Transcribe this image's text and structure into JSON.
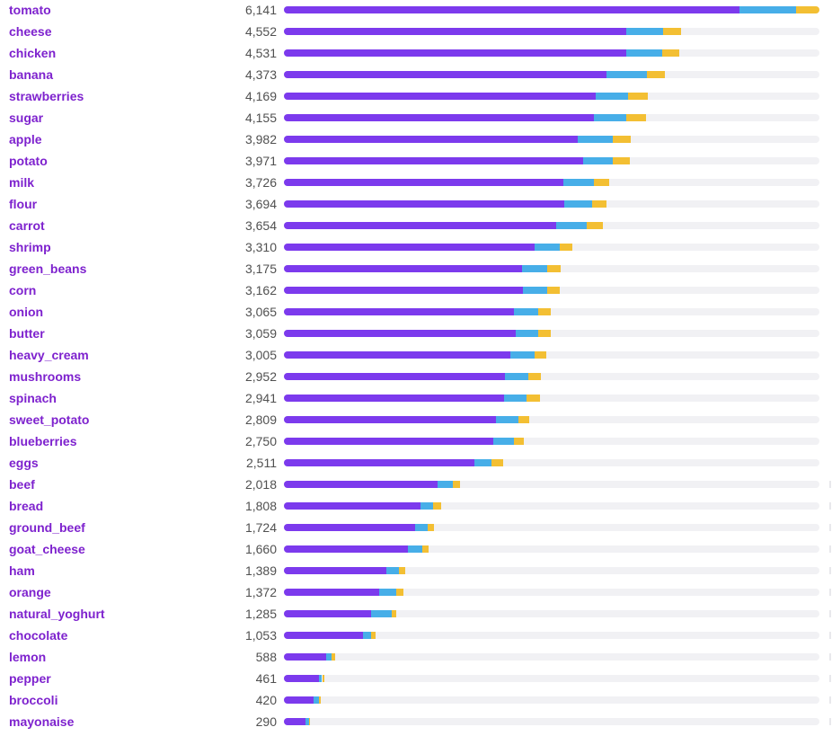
{
  "colors": {
    "label": "#7e22ce",
    "count": "#505050",
    "track": "#f1f1f4",
    "series": [
      "#7c3aed",
      "#47aee8",
      "#f3bf33"
    ]
  },
  "chart_data": {
    "type": "bar",
    "orientation": "horizontal",
    "stacked": true,
    "xlim": [
      0,
      6141
    ],
    "grid": false,
    "categories": [
      "tomato",
      "cheese",
      "chicken",
      "banana",
      "strawberries",
      "sugar",
      "apple",
      "potato",
      "milk",
      "flour",
      "carrot",
      "shrimp",
      "green_beans",
      "corn",
      "onion",
      "butter",
      "heavy_cream",
      "mushrooms",
      "spinach",
      "sweet_potato",
      "blueberries",
      "eggs",
      "beef",
      "bread",
      "ground_beef",
      "goat_cheese",
      "ham",
      "orange",
      "natural_yoghurt",
      "chocolate",
      "lemon",
      "pepper",
      "broccoli",
      "mayonaise"
    ],
    "totals": [
      "6,141",
      "4,552",
      "4,531",
      "4,373",
      "4,169",
      "4,155",
      "3,982",
      "3,971",
      "3,726",
      "3,694",
      "3,654",
      "3,310",
      "3,175",
      "3,162",
      "3,065",
      "3,059",
      "3,005",
      "2,952",
      "2,941",
      "2,809",
      "2,750",
      "2,511",
      "2,018",
      "1,808",
      "1,724",
      "1,660",
      "1,389",
      "1,372",
      "1,285",
      "1,053",
      "588",
      "461",
      "420",
      "290"
    ],
    "series": [
      {
        "values": [
          5227,
          3927,
          3927,
          3701,
          3577,
          3557,
          3370,
          3432,
          3206,
          3216,
          3123,
          2875,
          2731,
          2741,
          2638,
          2659,
          2597,
          2535,
          2525,
          2432,
          2401,
          2180,
          1763,
          1567,
          1505,
          1422,
          1175,
          1093,
          999,
          907,
          485,
          397,
          340,
          246
        ]
      },
      {
        "values": [
          649,
          422,
          412,
          463,
          371,
          371,
          401,
          340,
          350,
          319,
          350,
          289,
          289,
          278,
          278,
          258,
          278,
          268,
          258,
          258,
          237,
          196,
          175,
          144,
          144,
          165,
          144,
          196,
          237,
          93,
          62,
          41,
          62,
          41
        ]
      },
      {
        "values": [
          265,
          203,
          192,
          209,
          221,
          227,
          211,
          199,
          170,
          159,
          181,
          146,
          155,
          143,
          149,
          142,
          130,
          149,
          158,
          119,
          112,
          135,
          80,
          97,
          75,
          73,
          70,
          83,
          49,
          53,
          41,
          23,
          18,
          3
        ]
      }
    ]
  }
}
